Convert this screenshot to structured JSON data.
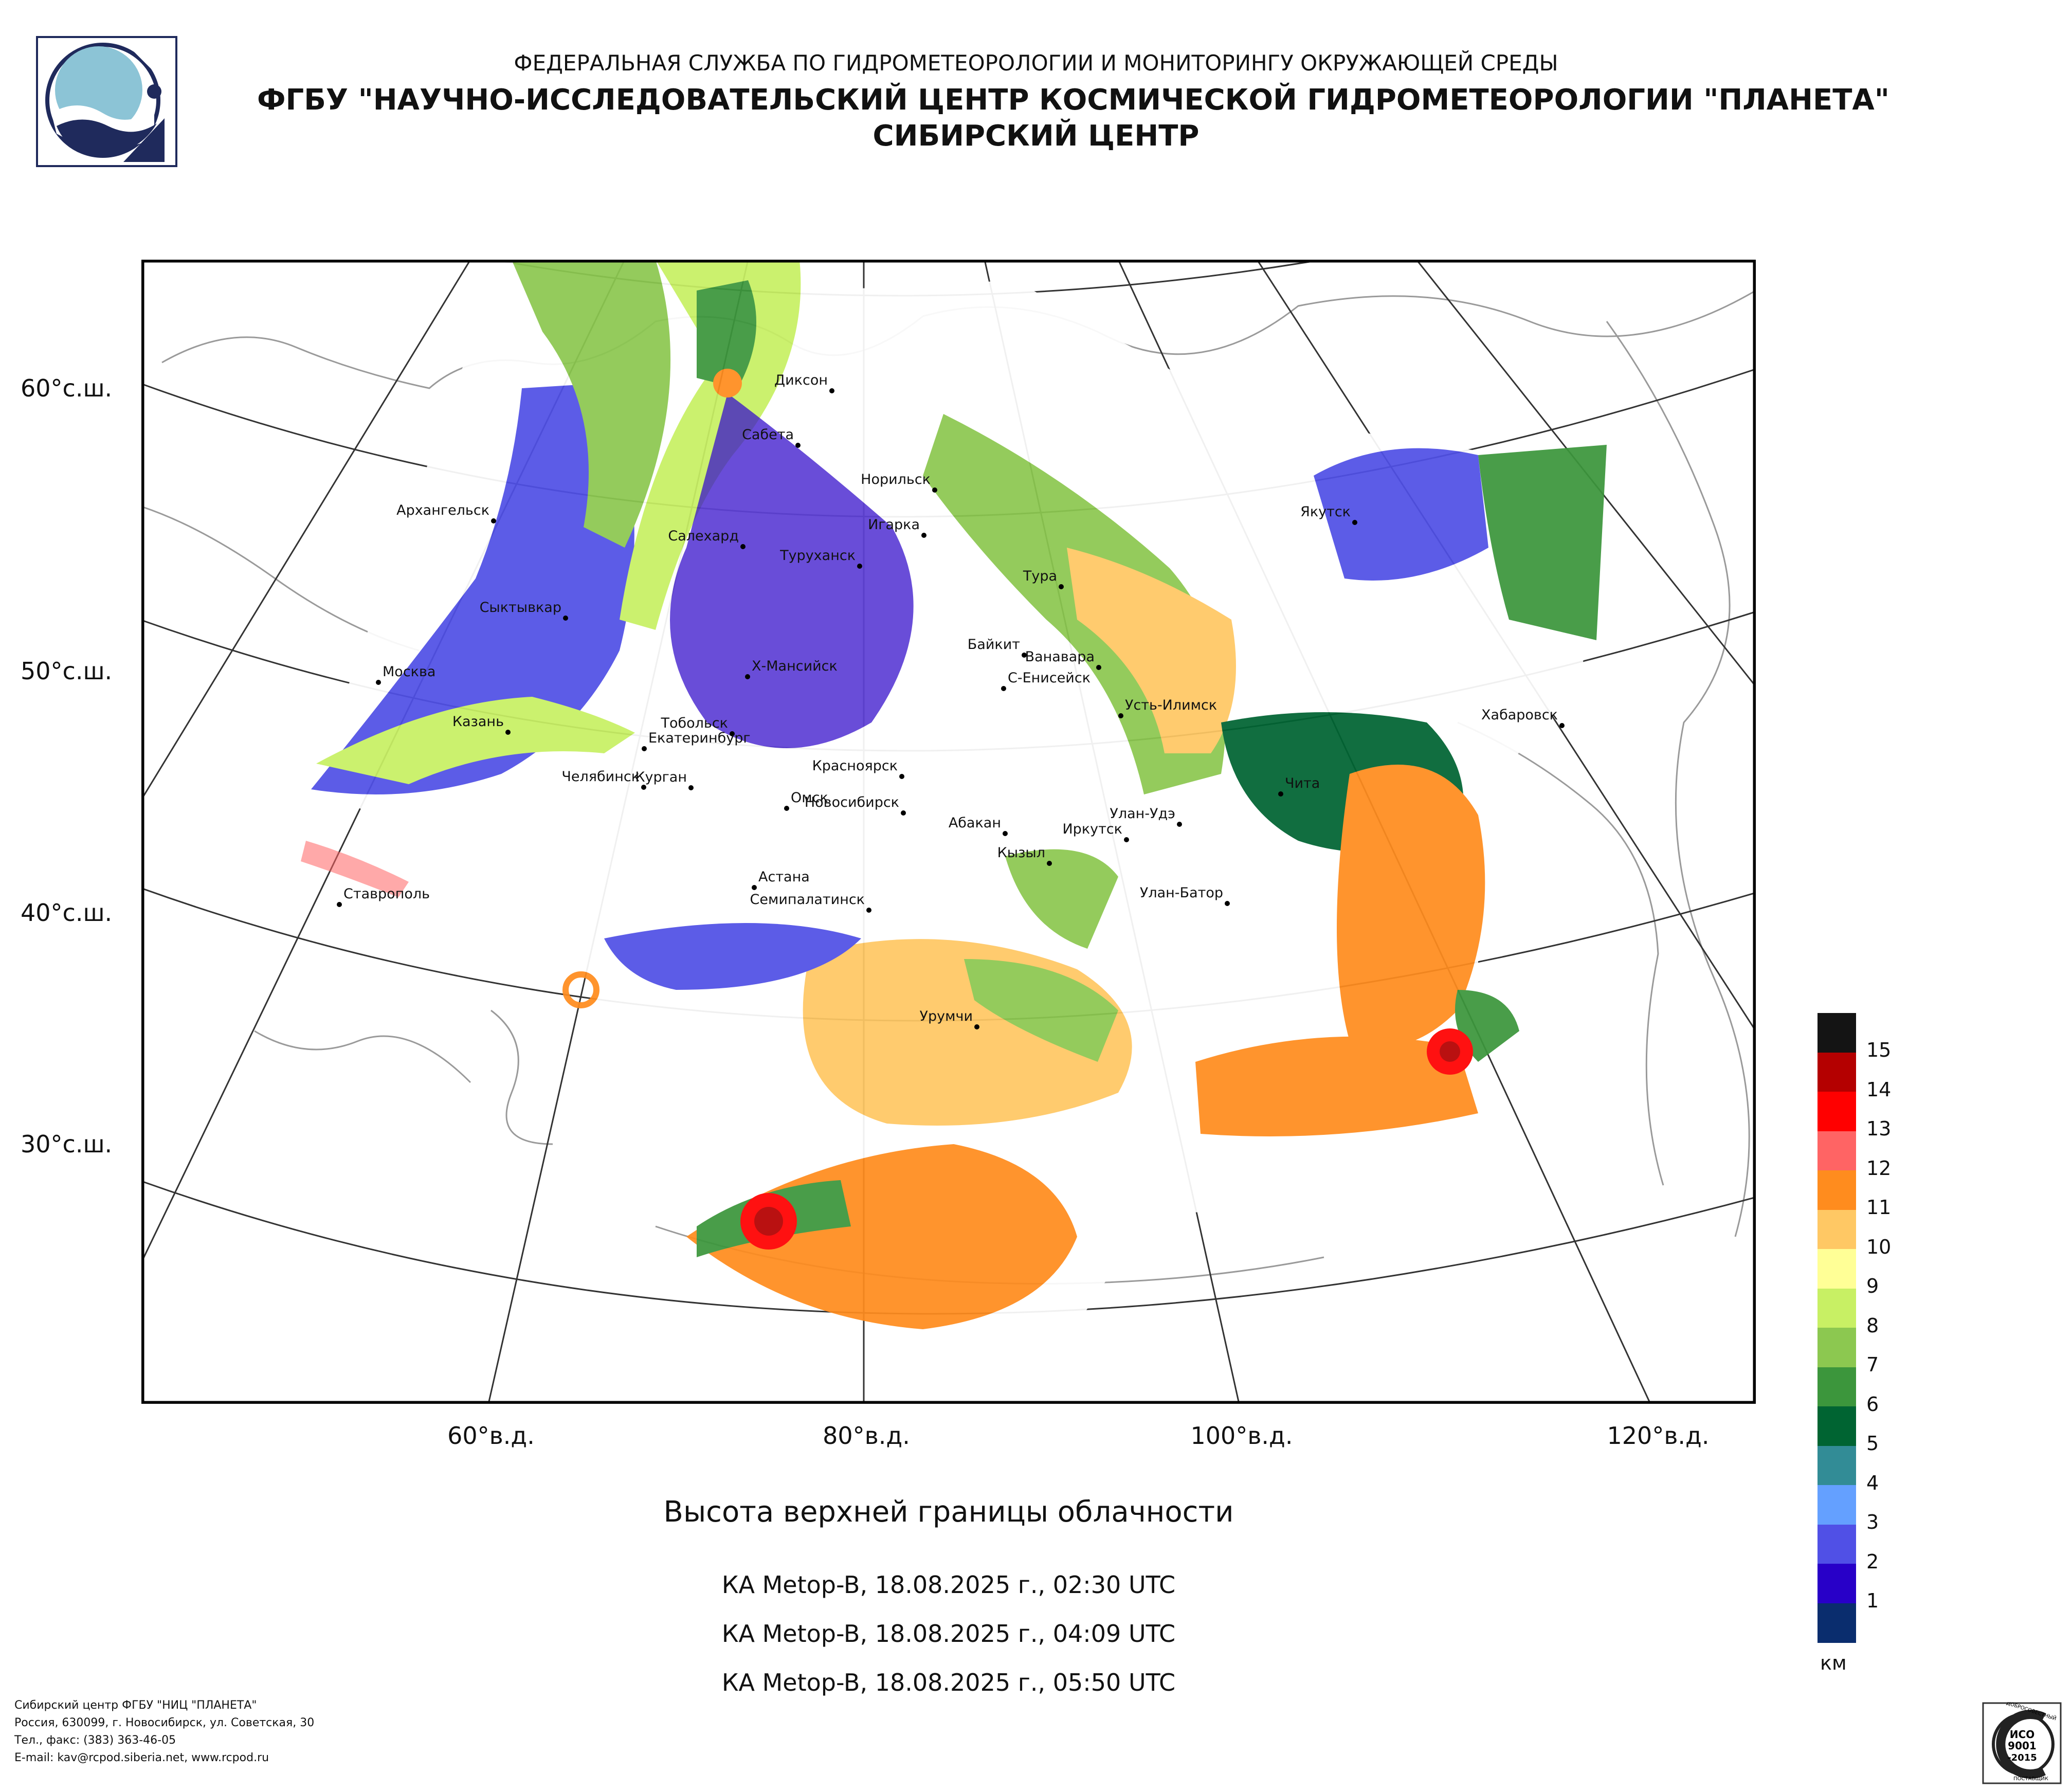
{
  "header": {
    "line1": "ФЕДЕРАЛЬНАЯ СЛУЖБА ПО ГИДРОМЕТЕОРОЛОГИИ И МОНИТОРИНГУ ОКРУЖАЮЩЕЙ СРЕДЫ",
    "line2": "ФГБУ \"НАУЧНО-ИССЛЕДОВАТЕЛЬСКИЙ ЦЕНТР КОСМИЧЕСКОЙ ГИДРОМЕТЕОРОЛОГИИ \"ПЛАНЕТА\"",
    "line3": "СИБИРСКИЙ ЦЕНТР",
    "logo_icon": "planeta-logo-icon"
  },
  "map": {
    "latitude_labels": [
      "60°с.ш.",
      "50°с.ш.",
      "40°с.ш.",
      "30°с.ш."
    ],
    "longitude_labels": [
      "60°в.д.",
      "80°в.д.",
      "100°в.д.",
      "120°в.д."
    ],
    "cities": [
      "Диксон",
      "Сабета",
      "Норильск",
      "Игарка",
      "Туруханск",
      "Архангельск",
      "Салехард",
      "Якутск",
      "Тура",
      "Сыктывкар",
      "Байкит",
      "Ванавара",
      "Москва",
      "Х-Мансийск",
      "С-Енисейск",
      "Усть-Илимск",
      "Казань",
      "Екатеринбург",
      "Тобольск",
      "Хабаровск",
      "Челябинск",
      "Курган",
      "Красноярск",
      "Чита",
      "Омск",
      "Новосибирск",
      "Абакан",
      "Улан-Удэ",
      "Иркутск",
      "Кызыл",
      "Астана",
      "Семипалатинск",
      "Улан-Батор",
      "Ставрополь",
      "Урумчи"
    ]
  },
  "legend": {
    "values": [
      "15",
      "14",
      "13",
      "12",
      "11",
      "10",
      "9",
      "8",
      "7",
      "6",
      "5",
      "4",
      "3",
      "2",
      "1"
    ],
    "colors": [
      "#141414",
      "#b40000",
      "#ff0000",
      "#ff6464",
      "#ff8c1e",
      "#ffc864",
      "#ffff96",
      "#c8f064",
      "#8cc850",
      "#3c963c",
      "#006432",
      "#328c96",
      "#64a0ff",
      "#5050e6",
      "#2800c8",
      "#0a2d6e"
    ],
    "unit": "км"
  },
  "caption": {
    "title": "Высота верхней границы облачности",
    "passes": [
      "КА Metop-B, 18.08.2025 г., 02:30 UTC",
      "КА Metop-B, 18.08.2025 г., 04:09 UTC",
      "КА Metop-B, 18.08.2025 г., 05:50 UTC"
    ]
  },
  "footer": {
    "line1": "Сибирский центр ФГБУ \"НИЦ \"ПЛАНЕТА\"",
    "line2": "Россия, 630099, г. Новосибирск, ул. Советская, 30",
    "line3": "Тел., факс: (383) 363-46-05",
    "line4": "E-mail: kav@rcpod.siberia.net, www.rcpod.ru"
  },
  "iso_badge": {
    "top_text": "ДОБРОСОВЕСТНЫЙ",
    "code1": "ИСО",
    "code2": "9001",
    "code3": "-2015",
    "bottom_text": "ПОСТАВЩИК"
  }
}
